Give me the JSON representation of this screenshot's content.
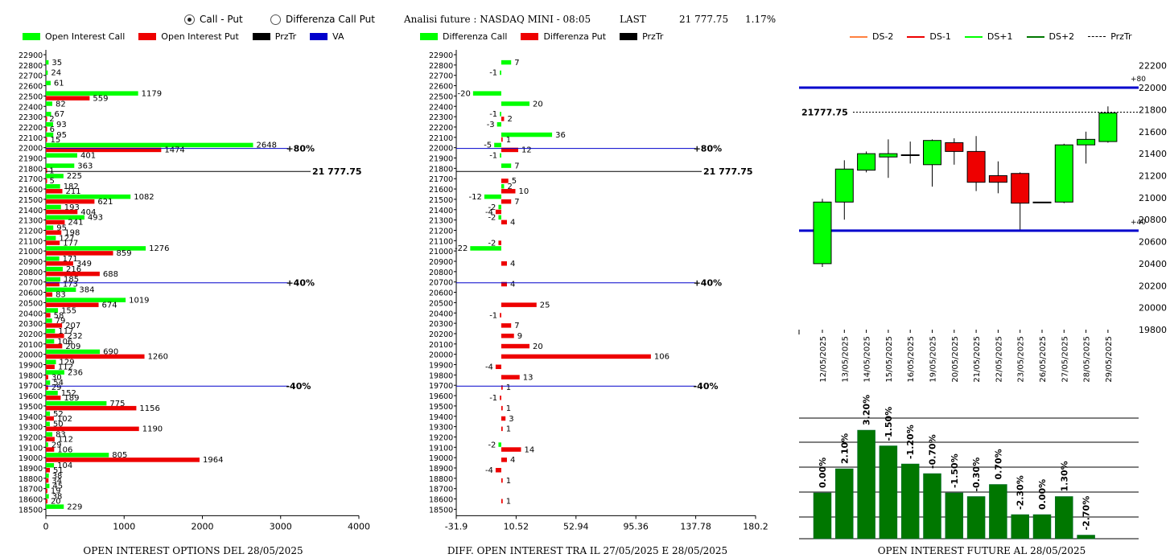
{
  "header": {
    "radio1_label": "Call - Put",
    "radio2_label": "Differenza Call Put",
    "analysis": "Analisi future : NASDAQ MINI - 08:05",
    "last_label": "LAST",
    "last_value": "21 777.75",
    "change": "1.17%"
  },
  "colors": {
    "call": "#00ff00",
    "put": "#ee0000",
    "va": "#0000cc",
    "dark_green": "#007700",
    "orange": "#ff8040"
  },
  "panel1": {
    "legend": [
      "Open Interest Call",
      "Open Interest Put",
      "PrzTr",
      "VA"
    ],
    "title": "OPEN INTEREST OPTIONS DEL 28/05/2025",
    "x_ticks": [
      "0",
      "1000",
      "2000",
      "3000",
      "4000"
    ],
    "price_line_label": "21 777.75",
    "level_labels": [
      "+80%",
      "+40%",
      "-40%"
    ]
  },
  "panel2": {
    "legend": [
      "Differenza Call",
      "Differenza Put",
      "PrzTr"
    ],
    "title": "DIFF. OPEN INTEREST TRA IL 27/05/2025 E 28/05/2025",
    "x_ticks": [
      "-31.9",
      "10.52",
      "52.94",
      "95.36",
      "137.78",
      "180.2"
    ],
    "price_line_label": "21 777.75",
    "level_labels": [
      "+80%",
      "+40%",
      "-40%"
    ]
  },
  "panel3": {
    "legend": [
      "DS-2",
      "DS-1",
      "DS+1",
      "DS+2",
      "PrzTr"
    ],
    "title": "OPEN INTEREST FUTURE AL 28/05/2025",
    "price_label": "21777.75",
    "level_labels": [
      "+80",
      "+40"
    ],
    "y_ticks": [
      "22200",
      "22000",
      "21800",
      "21600",
      "21400",
      "21200",
      "21000",
      "20800",
      "20600",
      "20400",
      "20200",
      "20000",
      "19800"
    ]
  },
  "chart_data": [
    {
      "type": "bar",
      "title": "OPEN INTEREST OPTIONS DEL 28/05/2025",
      "orientation": "horizontal",
      "xlim": [
        0,
        4000
      ],
      "va_levels": {
        "+80%": 22000,
        "+40%": 20700,
        "-40%": 19700
      },
      "przTr": 21777.75,
      "strikes": [
        22900,
        22800,
        22700,
        22600,
        22500,
        22400,
        22300,
        22200,
        22100,
        22000,
        21900,
        21800,
        21700,
        21600,
        21500,
        21400,
        21300,
        21200,
        21100,
        21000,
        20900,
        20800,
        20700,
        20600,
        20500,
        20400,
        20300,
        20200,
        20100,
        20000,
        19900,
        19800,
        19700,
        19600,
        19500,
        19400,
        19300,
        19200,
        19100,
        19000,
        18900,
        18800,
        18700,
        18600,
        18500
      ],
      "series": [
        {
          "name": "Open Interest Call",
          "values": [
            null,
            35,
            24,
            61,
            1179,
            82,
            67,
            93,
            95,
            2648,
            401,
            363,
            225,
            182,
            1082,
            193,
            493,
            95,
            127,
            1276,
            171,
            216,
            185,
            384,
            1019,
            155,
            79,
            117,
            106,
            690,
            129,
            236,
            54,
            152,
            775,
            52,
            50,
            83,
            29,
            805,
            104,
            38,
            45,
            38,
            229
          ]
        },
        {
          "name": "Open Interest Put",
          "values": [
            null,
            null,
            null,
            null,
            559,
            null,
            2,
            6,
            15,
            1474,
            null,
            1,
            5,
            211,
            621,
            404,
            241,
            198,
            177,
            859,
            349,
            688,
            173,
            83,
            674,
            58,
            207,
            232,
            209,
            1260,
            112,
            30,
            29,
            189,
            1156,
            102,
            1190,
            112,
            106,
            1964,
            51,
            34,
            19,
            20,
            null
          ]
        }
      ]
    },
    {
      "type": "bar",
      "title": "DIFF. OPEN INTEREST TRA IL 27/05/2025 E 28/05/2025",
      "orientation": "horizontal",
      "xlim": [
        -31.9,
        180.2
      ],
      "strikes": [
        22900,
        22800,
        22700,
        22600,
        22500,
        22400,
        22300,
        22200,
        22100,
        22000,
        21900,
        21800,
        21700,
        21600,
        21500,
        21400,
        21300,
        21200,
        21100,
        21000,
        20900,
        20800,
        20700,
        20600,
        20500,
        20400,
        20300,
        20200,
        20100,
        20000,
        19900,
        19800,
        19700,
        19600,
        19500,
        19400,
        19300,
        19200,
        19100,
        19000,
        18900,
        18800,
        18700,
        18600,
        18500
      ],
      "series": [
        {
          "name": "Differenza Call",
          "values": [
            null,
            7,
            -1,
            null,
            -20,
            20,
            -1,
            -3,
            36,
            -5,
            -1,
            7,
            null,
            2,
            -12,
            -2,
            -2,
            null,
            null,
            -22,
            null,
            null,
            null,
            null,
            null,
            null,
            null,
            null,
            null,
            null,
            null,
            null,
            null,
            null,
            null,
            null,
            null,
            null,
            -2,
            null,
            null,
            null,
            null,
            null,
            null
          ]
        },
        {
          "name": "Differenza Put",
          "values": [
            null,
            null,
            null,
            null,
            null,
            null,
            2,
            null,
            1,
            12,
            null,
            null,
            5,
            10,
            7,
            -4,
            4,
            null,
            -2,
            null,
            4,
            null,
            4,
            null,
            25,
            -1,
            7,
            9,
            20,
            106,
            -4,
            13,
            1,
            -1,
            1,
            3,
            1,
            null,
            14,
            4,
            -4,
            1,
            null,
            1,
            null
          ]
        }
      ]
    },
    {
      "type": "candlestick",
      "title": "OPEN INTEREST FUTURE AL 28/05/2025",
      "ylim": [
        19800,
        22300
      ],
      "levels": {
        "+80": 22000,
        "+40": 20700
      },
      "przTr": 21777.75,
      "dates": [
        "12/05/2025",
        "13/05/2025",
        "14/05/2025",
        "15/05/2025",
        "16/05/2025",
        "19/05/2025",
        "20/05/2025",
        "21/05/2025",
        "22/05/2025",
        "23/05/2025",
        "26/05/2025",
        "27/05/2025",
        "28/05/2025",
        "29/05/2025"
      ],
      "open": [
        20400,
        20960,
        21250,
        21370,
        21390,
        21300,
        21500,
        21420,
        21200,
        21220,
        20960,
        20960,
        21480,
        21510
      ],
      "close": [
        20960,
        21260,
        21400,
        21400,
        21390,
        21520,
        21420,
        21140,
        21140,
        20950,
        20960,
        21480,
        21530,
        21770
      ],
      "high": [
        20990,
        21340,
        21420,
        21530,
        21510,
        21530,
        21540,
        21560,
        21330,
        21230,
        20960,
        21490,
        21600,
        21830
      ],
      "low": [
        20370,
        20800,
        21230,
        21180,
        21310,
        21100,
        21300,
        21060,
        21040,
        20710,
        20960,
        20950,
        21310,
        21500
      ]
    },
    {
      "type": "bar",
      "title": "OPEN INTEREST FUTURE AL 28/05/2025",
      "categories": [
        "12/05/2025",
        "13/05/2025",
        "14/05/2025",
        "15/05/2025",
        "16/05/2025",
        "19/05/2025",
        "20/05/2025",
        "21/05/2025",
        "22/05/2025",
        "23/05/2025",
        "26/05/2025",
        "27/05/2025",
        "28/05/2025",
        "29/05/2025"
      ],
      "labels": [
        "0.00%",
        "2.10%",
        "3.20%",
        "-1.50%",
        "-1.20%",
        "-0.70%",
        "-1.50%",
        "-0.30%",
        "0.70%",
        "-2.30%",
        "0.00%",
        "1.30%",
        "-2.70%"
      ],
      "values": [
        38,
        58,
        90,
        77,
        62,
        54,
        38,
        35,
        45,
        20,
        20,
        35,
        3
      ]
    }
  ]
}
